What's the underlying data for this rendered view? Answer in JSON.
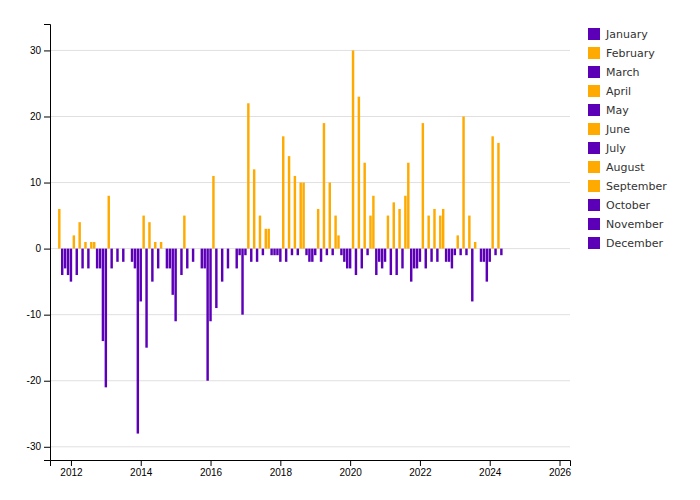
{
  "chart_data": {
    "type": "bar",
    "series": [
      {
        "name": "January",
        "color": "#5c00b8",
        "x": [
          2012,
          2013,
          2014,
          2015,
          2016,
          2017,
          2018,
          2019,
          2020,
          2021,
          2022,
          2023,
          2024
        ],
        "values": [
          -5,
          -21,
          -8,
          -11,
          -11,
          -1,
          -2,
          -1,
          -3,
          -2,
          -2,
          -1,
          -2
        ]
      },
      {
        "name": "February",
        "color": "#ffaa00",
        "x": [
          2012.0833333333333,
          2013.0833333333333,
          2014.0833333333333,
          2015.0833333333333,
          2016.0833333333333,
          2017.0833333333333,
          2018.0833333333333,
          2019.0833333333333,
          2020.0833333333333,
          2021.0833333333333,
          2022.0833333333333,
          2023.0833333333333,
          2024.0833333333333
        ],
        "values": [
          2,
          8,
          5,
          0,
          11,
          22,
          17,
          6,
          30,
          5,
          19,
          2,
          17
        ]
      },
      {
        "name": "March",
        "color": "#5c00b8",
        "x": [
          2012.1666666666667,
          2013.1666666666667,
          2014.1666666666667,
          2015.1666666666667,
          2016.1666666666667,
          2017.1666666666667,
          2018.1666666666667,
          2019.1666666666667,
          2020.1666666666667,
          2021.1666666666667,
          2022.1666666666667,
          2023.1666666666667,
          2024.1666666666667
        ],
        "values": [
          -4,
          -3,
          -15,
          -4,
          -9,
          -2,
          -2,
          -2,
          -4,
          -4,
          -3,
          -1,
          -1
        ]
      },
      {
        "name": "April",
        "color": "#ffaa00",
        "x": [
          2012.25,
          2013.25,
          2014.25,
          2015.25,
          2016.25,
          2017.25,
          2018.25,
          2019.25,
          2020.25,
          2021.25,
          2022.25,
          2023.25,
          2024.25
        ],
        "values": [
          4,
          0,
          4,
          5,
          0,
          12,
          14,
          19,
          23,
          7,
          5,
          20,
          16
        ]
      },
      {
        "name": "May",
        "color": "#5c00b8",
        "x": [
          2012.3333333333333,
          2013.3333333333333,
          2014.3333333333333,
          2015.3333333333333,
          2016.3333333333333,
          2017.3333333333333,
          2018.3333333333333,
          2019.3333333333333,
          2020.3333333333333,
          2021.3333333333333,
          2022.3333333333333,
          2023.3333333333333,
          2024.3333333333333
        ],
        "values": [
          -3,
          -2,
          -5,
          -3,
          -5,
          -2,
          -1,
          -1,
          -3,
          -4,
          -2,
          -1,
          -1
        ]
      },
      {
        "name": "June",
        "color": "#ffaa00",
        "x": [
          2012.4166666666667,
          2013.4166666666667,
          2014.4166666666667,
          2015.4166666666667,
          2016.4166666666667,
          2017.4166666666667,
          2018.4166666666667,
          2019.4166666666667,
          2020.4166666666667,
          2021.4166666666667,
          2022.4166666666667,
          2023.4166666666667
        ],
        "values": [
          1,
          0,
          1,
          0,
          0,
          5,
          11,
          10,
          13,
          6,
          6,
          5
        ]
      },
      {
        "name": "July",
        "color": "#5c00b8",
        "x": [
          2012.5,
          2013.5,
          2014.5,
          2015.5,
          2016.5,
          2017.5,
          2018.5,
          2019.5,
          2020.5,
          2021.5,
          2022.5,
          2023.5
        ],
        "values": [
          -3,
          -2,
          -3,
          -2,
          -3,
          -1,
          -1,
          -1,
          -1,
          -3,
          -2,
          -8
        ]
      },
      {
        "name": "August",
        "color": "#ffaa00",
        "x": [
          2012.5833333333333,
          2013.5833333333333,
          2014.5833333333333,
          2015.5833333333333,
          2016.5833333333333,
          2017.5833333333333,
          2018.5833333333333,
          2019.5833333333333,
          2020.5833333333333,
          2021.5833333333333,
          2022.5833333333333,
          2023.5833333333333
        ],
        "values": [
          1,
          0,
          1,
          0,
          0,
          3,
          10,
          5,
          5,
          8,
          5,
          1
        ]
      },
      {
        "name": "September",
        "color": "#ffaa00",
        "x": [
          2011.6666666666667,
          2012.6666666666667,
          2013.6666666666667,
          2014.6666666666667,
          2015.6666666666667,
          2016.6666666666667,
          2017.6666666666667,
          2018.6666666666667,
          2019.6666666666667,
          2020.6666666666667,
          2021.6666666666667,
          2022.6666666666667,
          2023.6666666666667
        ],
        "values": [
          6,
          1,
          0,
          0,
          0,
          0,
          3,
          10,
          2,
          8,
          13,
          6,
          0
        ]
      },
      {
        "name": "October",
        "color": "#5c00b8",
        "x": [
          2011.75,
          2012.75,
          2013.75,
          2014.75,
          2015.75,
          2016.75,
          2017.75,
          2018.75,
          2019.75,
          2020.75,
          2021.75,
          2022.75,
          2023.75
        ],
        "values": [
          -4,
          -3,
          -2,
          -3,
          -3,
          -3,
          -1,
          -1,
          -1,
          -4,
          -5,
          -2,
          -2
        ]
      },
      {
        "name": "November",
        "color": "#5c00b8",
        "x": [
          2011.8333333333333,
          2012.8333333333333,
          2013.8333333333333,
          2014.8333333333333,
          2015.8333333333333,
          2016.8333333333333,
          2017.8333333333333,
          2018.8333333333333,
          2019.8333333333333,
          2020.8333333333333,
          2021.8333333333333,
          2022.8333333333333,
          2023.8333333333333
        ],
        "values": [
          -3,
          -3,
          -3,
          -3,
          -3,
          -1,
          -1,
          -2,
          -2,
          -2,
          -3,
          -2,
          -2
        ]
      },
      {
        "name": "December",
        "color": "#5c00b8",
        "x": [
          2011.9166666666667,
          2012.9166666666667,
          2013.9166666666667,
          2014.9166666666667,
          2015.9166666666667,
          2016.9166666666667,
          2017.9166666666667,
          2018.9166666666667,
          2019.9166666666667,
          2020.9166666666667,
          2021.9166666666667,
          2022.9166666666667,
          2023.9166666666667
        ],
        "values": [
          -4,
          -14,
          -28,
          -7,
          -20,
          -10,
          -1,
          -2,
          -3,
          -3,
          -3,
          -3,
          -5
        ]
      }
    ],
    "xlim": [
      2011.4,
      2026.3
    ],
    "xticks": [
      2012,
      2014,
      2016,
      2018,
      2020,
      2022,
      2024,
      2026
    ],
    "ylim": [
      -32,
      34
    ],
    "yticks": [
      -30,
      -20,
      -10,
      0,
      10,
      20,
      30
    ],
    "grid": true,
    "legend": "right"
  }
}
